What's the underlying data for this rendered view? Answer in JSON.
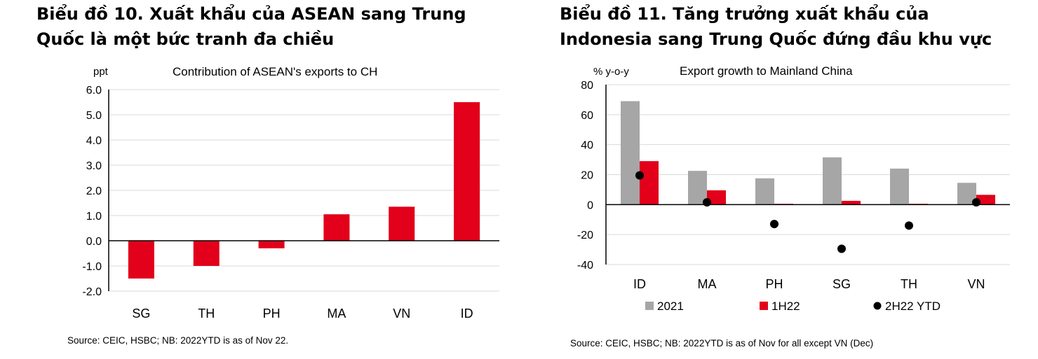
{
  "colors": {
    "red": "#e2001a",
    "grey": "#a6a6a6",
    "dot": "#000000",
    "grid": "#d9d9d9"
  },
  "chart_data": [
    {
      "type": "bar",
      "heading_lines": [
        "Biểu đồ 10. Xuất khẩu của ASEAN sang Trung",
        "Quốc là một bức tranh đa chiều"
      ],
      "title": "Contribution  of ASEAN's exports to CH",
      "ylabel": "ppt",
      "categories": [
        "SG",
        "TH",
        "PH",
        "MA",
        "VN",
        "ID"
      ],
      "values": [
        -1.5,
        -1.0,
        -0.3,
        1.05,
        1.35,
        5.5
      ],
      "ylim": [
        -2.0,
        6.0
      ],
      "yticks": [
        "-2.0",
        "-1.0",
        "0.0",
        "1.0",
        "2.0",
        "3.0",
        "4.0",
        "5.0",
        "6.0"
      ],
      "grid": true,
      "source": "Source: CEIC, HSBC; NB: 2022YTD is as of Nov 22."
    },
    {
      "type": "bar",
      "heading_lines": [
        "Biểu đồ 11. Tăng trưởng xuất khẩu của",
        "Indonesia sang Trung Quốc đứng đầu khu vực"
      ],
      "title": "Export growth to Mainland China",
      "ylabel": "% y-o-y",
      "categories": [
        "ID",
        "MA",
        "PH",
        "SG",
        "TH",
        "VN"
      ],
      "series": [
        {
          "name": "2021",
          "kind": "bar",
          "values": [
            69,
            22.5,
            17.5,
            31.5,
            24,
            14.5
          ]
        },
        {
          "name": "1H22",
          "kind": "bar",
          "values": [
            29,
            9.5,
            0.5,
            2.5,
            0.5,
            6.5
          ]
        },
        {
          "name": "2H22 YTD",
          "kind": "dot",
          "values": [
            19.5,
            1.5,
            -13,
            -29.5,
            -14,
            1.5
          ]
        }
      ],
      "ylim": [
        -40,
        80
      ],
      "yticks": [
        "-40",
        "-20",
        "0",
        "20",
        "40",
        "60",
        "80"
      ],
      "grid": true,
      "legend": "bottom",
      "source": "Source: CEIC, HSBC; NB: 2022YTD is as of Nov for all except VN (Dec)"
    }
  ]
}
